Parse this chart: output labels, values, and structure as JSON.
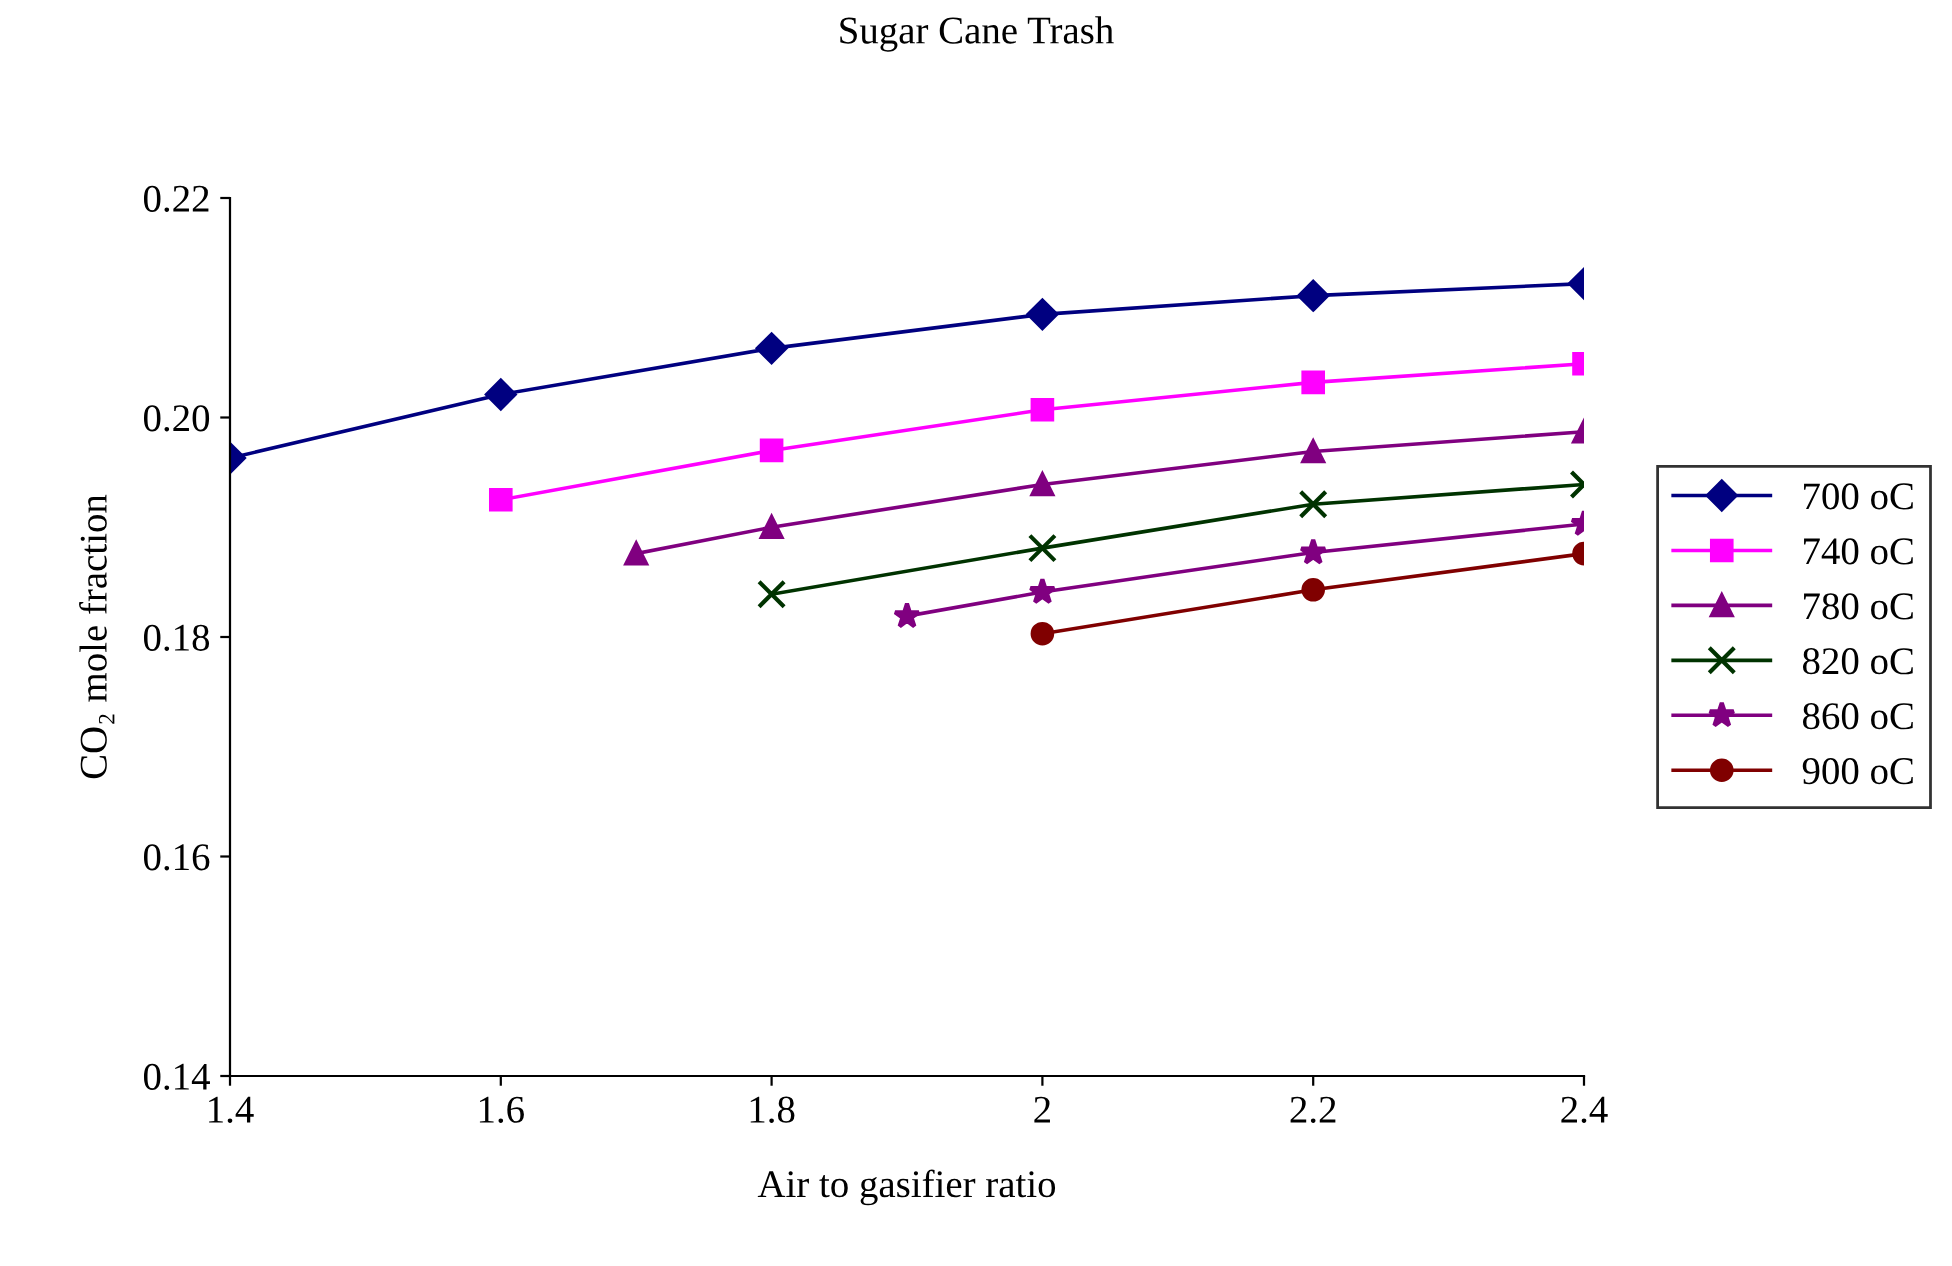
{
  "chart_data": {
    "type": "line",
    "title": "Sugar Cane Trash",
    "xlabel": "Air to gasifier ratio",
    "ylabel": "CO₂ mole fraction",
    "xlim": [
      1.4,
      2.4
    ],
    "xticks": [
      1.4,
      1.6,
      1.8,
      2,
      2.2,
      2.4
    ],
    "ylim": [
      0.14,
      0.22
    ],
    "yticks": [
      0.14,
      0.16,
      0.18,
      {
        "value": 0.2,
        "label": "0.20"
      },
      0.22
    ],
    "grid": false,
    "legend": "right",
    "line_style": "solid",
    "series": [
      {
        "name": "700 oC",
        "color": "#000080",
        "marker": "diamond",
        "x": [
          1.4,
          1.6,
          1.8,
          2.0,
          2.2,
          2.4
        ],
        "values": [
          0.1963,
          0.2021,
          0.2063,
          0.2094,
          0.2111,
          0.2122
        ]
      },
      {
        "name": "740 oC",
        "color": "#ff00ff",
        "marker": "square",
        "x": [
          1.6,
          1.8,
          2.0,
          2.2,
          2.4
        ],
        "values": [
          0.1925,
          0.197,
          0.2007,
          0.2032,
          0.2049
        ]
      },
      {
        "name": "780 oC",
        "color": "#800080",
        "marker": "triangle",
        "x": [
          1.7,
          1.8,
          2.0,
          2.2,
          2.4
        ],
        "values": [
          0.1876,
          0.19,
          0.1939,
          0.1969,
          0.1987
        ]
      },
      {
        "name": "820 oC",
        "color": "#003300",
        "marker": "cross",
        "x": [
          1.8,
          2.0,
          2.2,
          2.4
        ],
        "values": [
          0.1839,
          0.1881,
          0.1921,
          0.1939
        ]
      },
      {
        "name": "860 oC",
        "color": "#800080",
        "marker": "star",
        "x": [
          1.9,
          2.0,
          2.2,
          2.4
        ],
        "values": [
          0.1819,
          0.1841,
          0.1877,
          0.1903
        ]
      },
      {
        "name": "900 oC",
        "color": "#800000",
        "marker": "circle",
        "x": [
          2.0,
          2.2,
          2.4
        ],
        "values": [
          0.1803,
          0.1843,
          0.1876
        ]
      }
    ]
  }
}
